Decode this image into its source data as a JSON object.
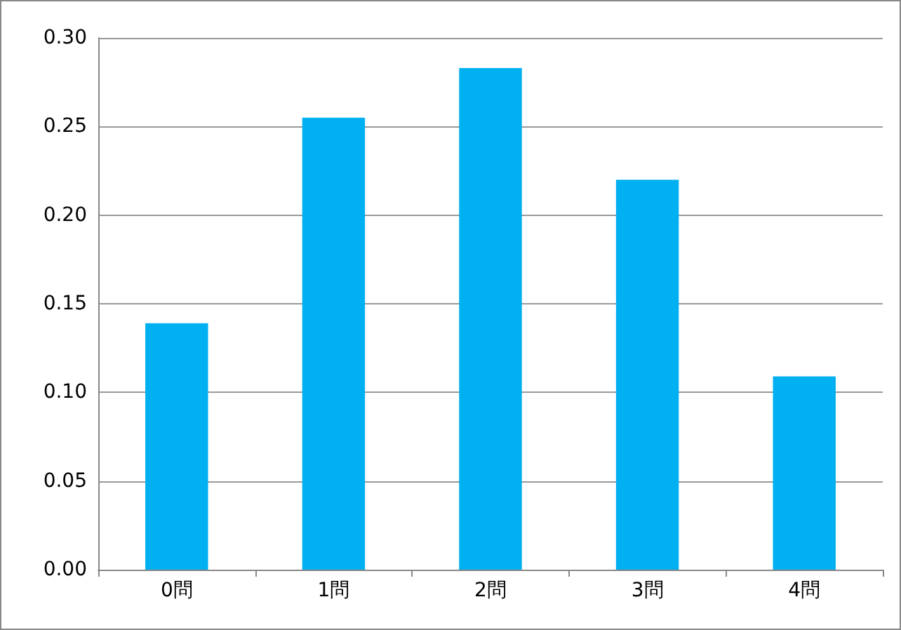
{
  "chart_data": {
    "type": "bar",
    "categories": [
      "0問",
      "1問",
      "2問",
      "3問",
      "4問"
    ],
    "values": [
      0.139,
      0.255,
      0.283,
      0.22,
      0.109
    ],
    "color": "#00b0f0",
    "ylim": [
      0,
      0.3
    ],
    "yticks": [
      {
        "value": 0,
        "label": "0.00"
      },
      {
        "value": 0.05,
        "label": "0.05"
      },
      {
        "value": 0.1,
        "label": "0.10"
      },
      {
        "value": 0.15,
        "label": "0.15"
      },
      {
        "value": 0.2,
        "label": "0.20"
      },
      {
        "value": 0.25,
        "label": "0.25"
      },
      {
        "value": 0.3,
        "label": "0.30"
      }
    ],
    "grid": true
  }
}
